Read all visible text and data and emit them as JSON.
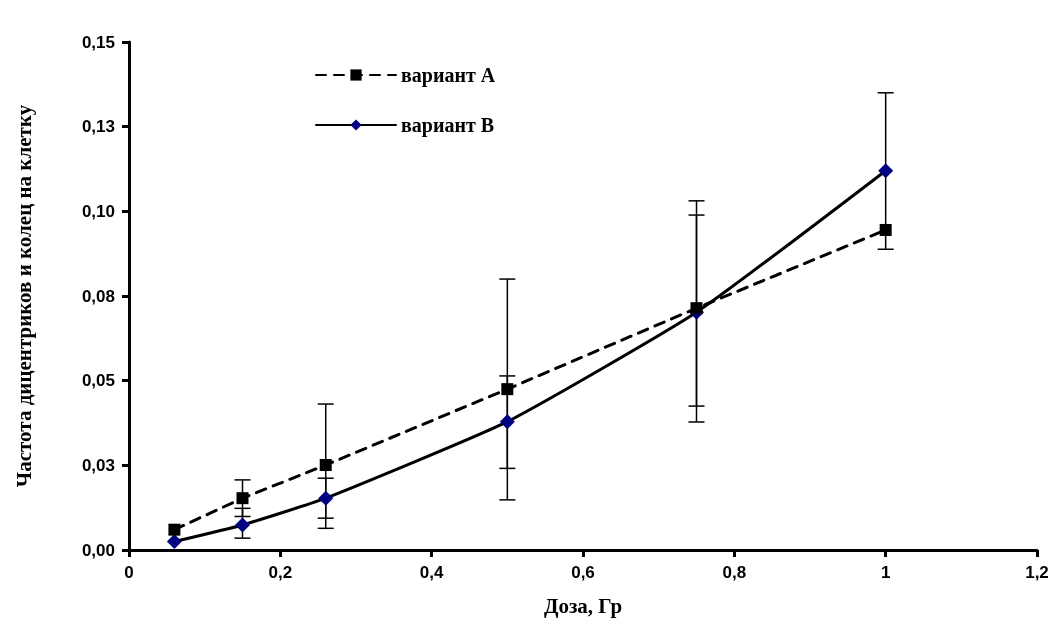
{
  "chart_data": {
    "type": "line",
    "xlabel": "Доза, Гр",
    "ylabel": "Частота дицентриков и колец на клетку",
    "x": [
      0.06,
      0.15,
      0.26,
      0.5,
      0.75,
      1
    ],
    "series": [
      {
        "name": "вариант А",
        "color": "#000000",
        "line_style": "dashed",
        "marker": "square",
        "values": [
          0.006,
          0.0153,
          0.0251,
          0.0475,
          0.0714,
          0.0945
        ],
        "errors": [
          null,
          0.0054,
          [
            0.0094,
            0.0431
          ],
          [
            0.0148,
            0.08
          ],
          [
            0.0378,
            0.1031
          ],
          null
        ]
      },
      {
        "name": "вариант В",
        "color": "#000080",
        "line_style": "solid",
        "marker": "diamond",
        "values": [
          0.0025,
          0.0074,
          0.0153,
          0.0379,
          0.0702,
          0.112
        ],
        "errors": [
          null,
          [
            0.0035,
            0.0123
          ],
          [
            0.0064,
            0.0212
          ],
          [
            0.0241,
            0.0514
          ],
          [
            0.0425,
            0.0989
          ],
          [
            0.0888,
            0.135
          ]
        ]
      }
    ],
    "xlim": [
      0,
      1.2
    ],
    "xticks": [
      0,
      {
        "value": 0.2,
        "label": "0,2"
      },
      {
        "value": 0.4,
        "label": "0,4"
      },
      {
        "value": 0.6,
        "label": "0,6"
      },
      {
        "value": 0.8,
        "label": "0,8"
      },
      1,
      {
        "value": 1.2,
        "label": "1,2"
      }
    ],
    "ylim": [
      0,
      0.15
    ],
    "yticks": [
      {
        "value": 0,
        "label": "0,00"
      },
      {
        "value": 0.025,
        "label": "0,03"
      },
      {
        "value": 0.05,
        "label": "0,05"
      },
      {
        "value": 0.075,
        "label": "0,08"
      },
      {
        "value": 0.1,
        "label": "0,10"
      },
      {
        "value": 0.125,
        "label": "0,13"
      },
      {
        "value": 0.15,
        "label": "0,15"
      }
    ],
    "grid": false,
    "legend": "top left"
  }
}
